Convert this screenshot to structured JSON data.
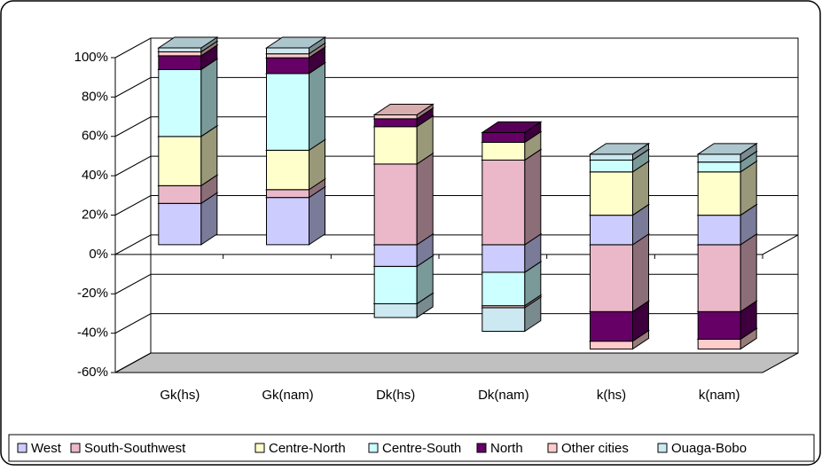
{
  "chart_data": {
    "type": "bar3d_stacked",
    "categories": [
      "Gk(hs)",
      "Gk(nam)",
      "Dk(hs)",
      "Dk(nam)",
      "k(hs)",
      "k(nam)"
    ],
    "series": [
      {
        "name": "West",
        "color": "#ccccff",
        "values": [
          21,
          24,
          -11,
          -14,
          15,
          15
        ]
      },
      {
        "name": "South-Southwest",
        "color": "#eab8c8",
        "values": [
          9,
          4,
          41,
          43,
          -34,
          -34
        ]
      },
      {
        "name": "Centre-North",
        "color": "#ffffcc",
        "values": [
          25,
          20,
          19,
          9,
          22,
          22
        ]
      },
      {
        "name": "Centre-South",
        "color": "#ccffff",
        "values": [
          34,
          39,
          -19,
          -17,
          6,
          5
        ]
      },
      {
        "name": "North",
        "color": "#660066",
        "values": [
          7,
          8,
          4,
          5,
          -15,
          -14
        ]
      },
      {
        "name": "Other cities",
        "color": "#ffcccc",
        "values": [
          2,
          2,
          2,
          -1,
          -4,
          -5
        ]
      },
      {
        "name": "Ouaga-Bobo",
        "color": "#cce8f0",
        "values": [
          2,
          3,
          -7,
          -12,
          3,
          4
        ]
      }
    ],
    "ylim": [
      -60,
      100
    ],
    "yticks": [
      {
        "value": -60,
        "label": "-60%"
      },
      {
        "value": -40,
        "label": "-40%"
      },
      {
        "value": -20,
        "label": "-20%"
      },
      {
        "value": 0,
        "label": "0%"
      },
      {
        "value": 20,
        "label": "20%"
      },
      {
        "value": 40,
        "label": "40%"
      },
      {
        "value": 60,
        "label": "60%"
      },
      {
        "value": 80,
        "label": "80%"
      },
      {
        "value": 100,
        "label": "100%"
      }
    ],
    "grid": true
  }
}
